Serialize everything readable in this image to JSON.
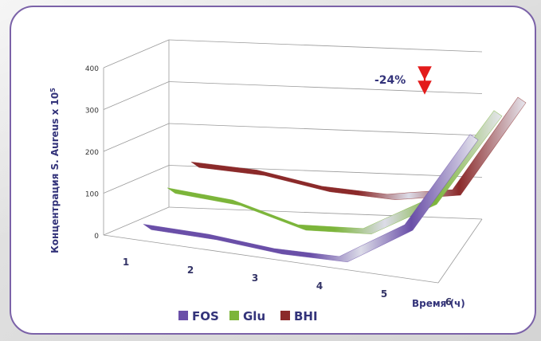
{
  "chart_data": {
    "type": "line",
    "style": "3d",
    "categories": [
      "1",
      "2",
      "3",
      "4",
      "5",
      "6"
    ],
    "series": [
      {
        "name": "FOS",
        "values": [
          45,
          40,
          25,
          25,
          120,
          355
        ],
        "color": "#6a4fa8"
      },
      {
        "name": "Glu",
        "values": [
          90,
          80,
          40,
          50,
          140,
          370
        ],
        "color": "#7cb53a"
      },
      {
        "name": "BHI",
        "values": [
          110,
          110,
          90,
          90,
          120,
          360
        ],
        "color": "#8b2a2a"
      }
    ],
    "ylabel": "Концентрация S. Aureus x 10",
    "ylabel_sup": "5",
    "xlabel": "Время (ч)",
    "ylim": [
      0,
      400
    ],
    "yticks": [
      "0",
      "100",
      "200",
      "300",
      "400"
    ],
    "grid": true,
    "legend_position": "bottom",
    "annotation": {
      "text": "-24%"
    },
    "colors": {
      "border": "#7b62a8",
      "arrow": "#e31b1b",
      "text": "#33337a"
    }
  }
}
